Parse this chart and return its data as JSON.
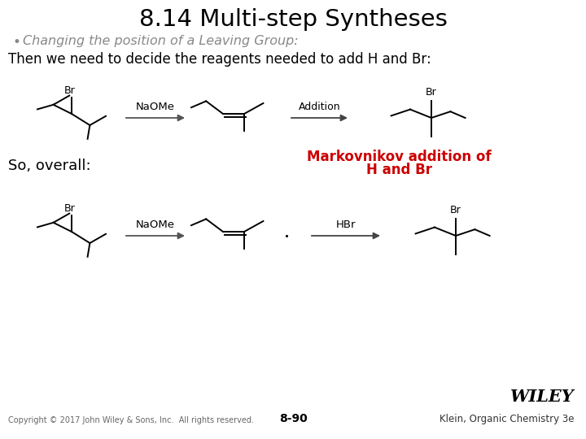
{
  "title": "8.14 Multi-step Syntheses",
  "bullet_text": "Changing the position of a Leaving Group:",
  "line1": "Then we need to decide the reagents needed to add H and Br:",
  "so_overall": "So, overall:",
  "markov_line1": "Markovnikov addition of",
  "markov_line2": "H and Br",
  "footer_copyright": "Copyright © 2017 John Wiley & Sons, Inc.  All rights reserved.",
  "footer_page": "8-90",
  "footer_right": "Klein, Organic Chemistry 3e",
  "bg_color": "#ffffff",
  "title_color": "#000000",
  "bullet_color": "#888888",
  "body_color": "#000000",
  "markov_color": "#cc0000",
  "wiley_color": "#000000",
  "arrow_color": "#555555"
}
